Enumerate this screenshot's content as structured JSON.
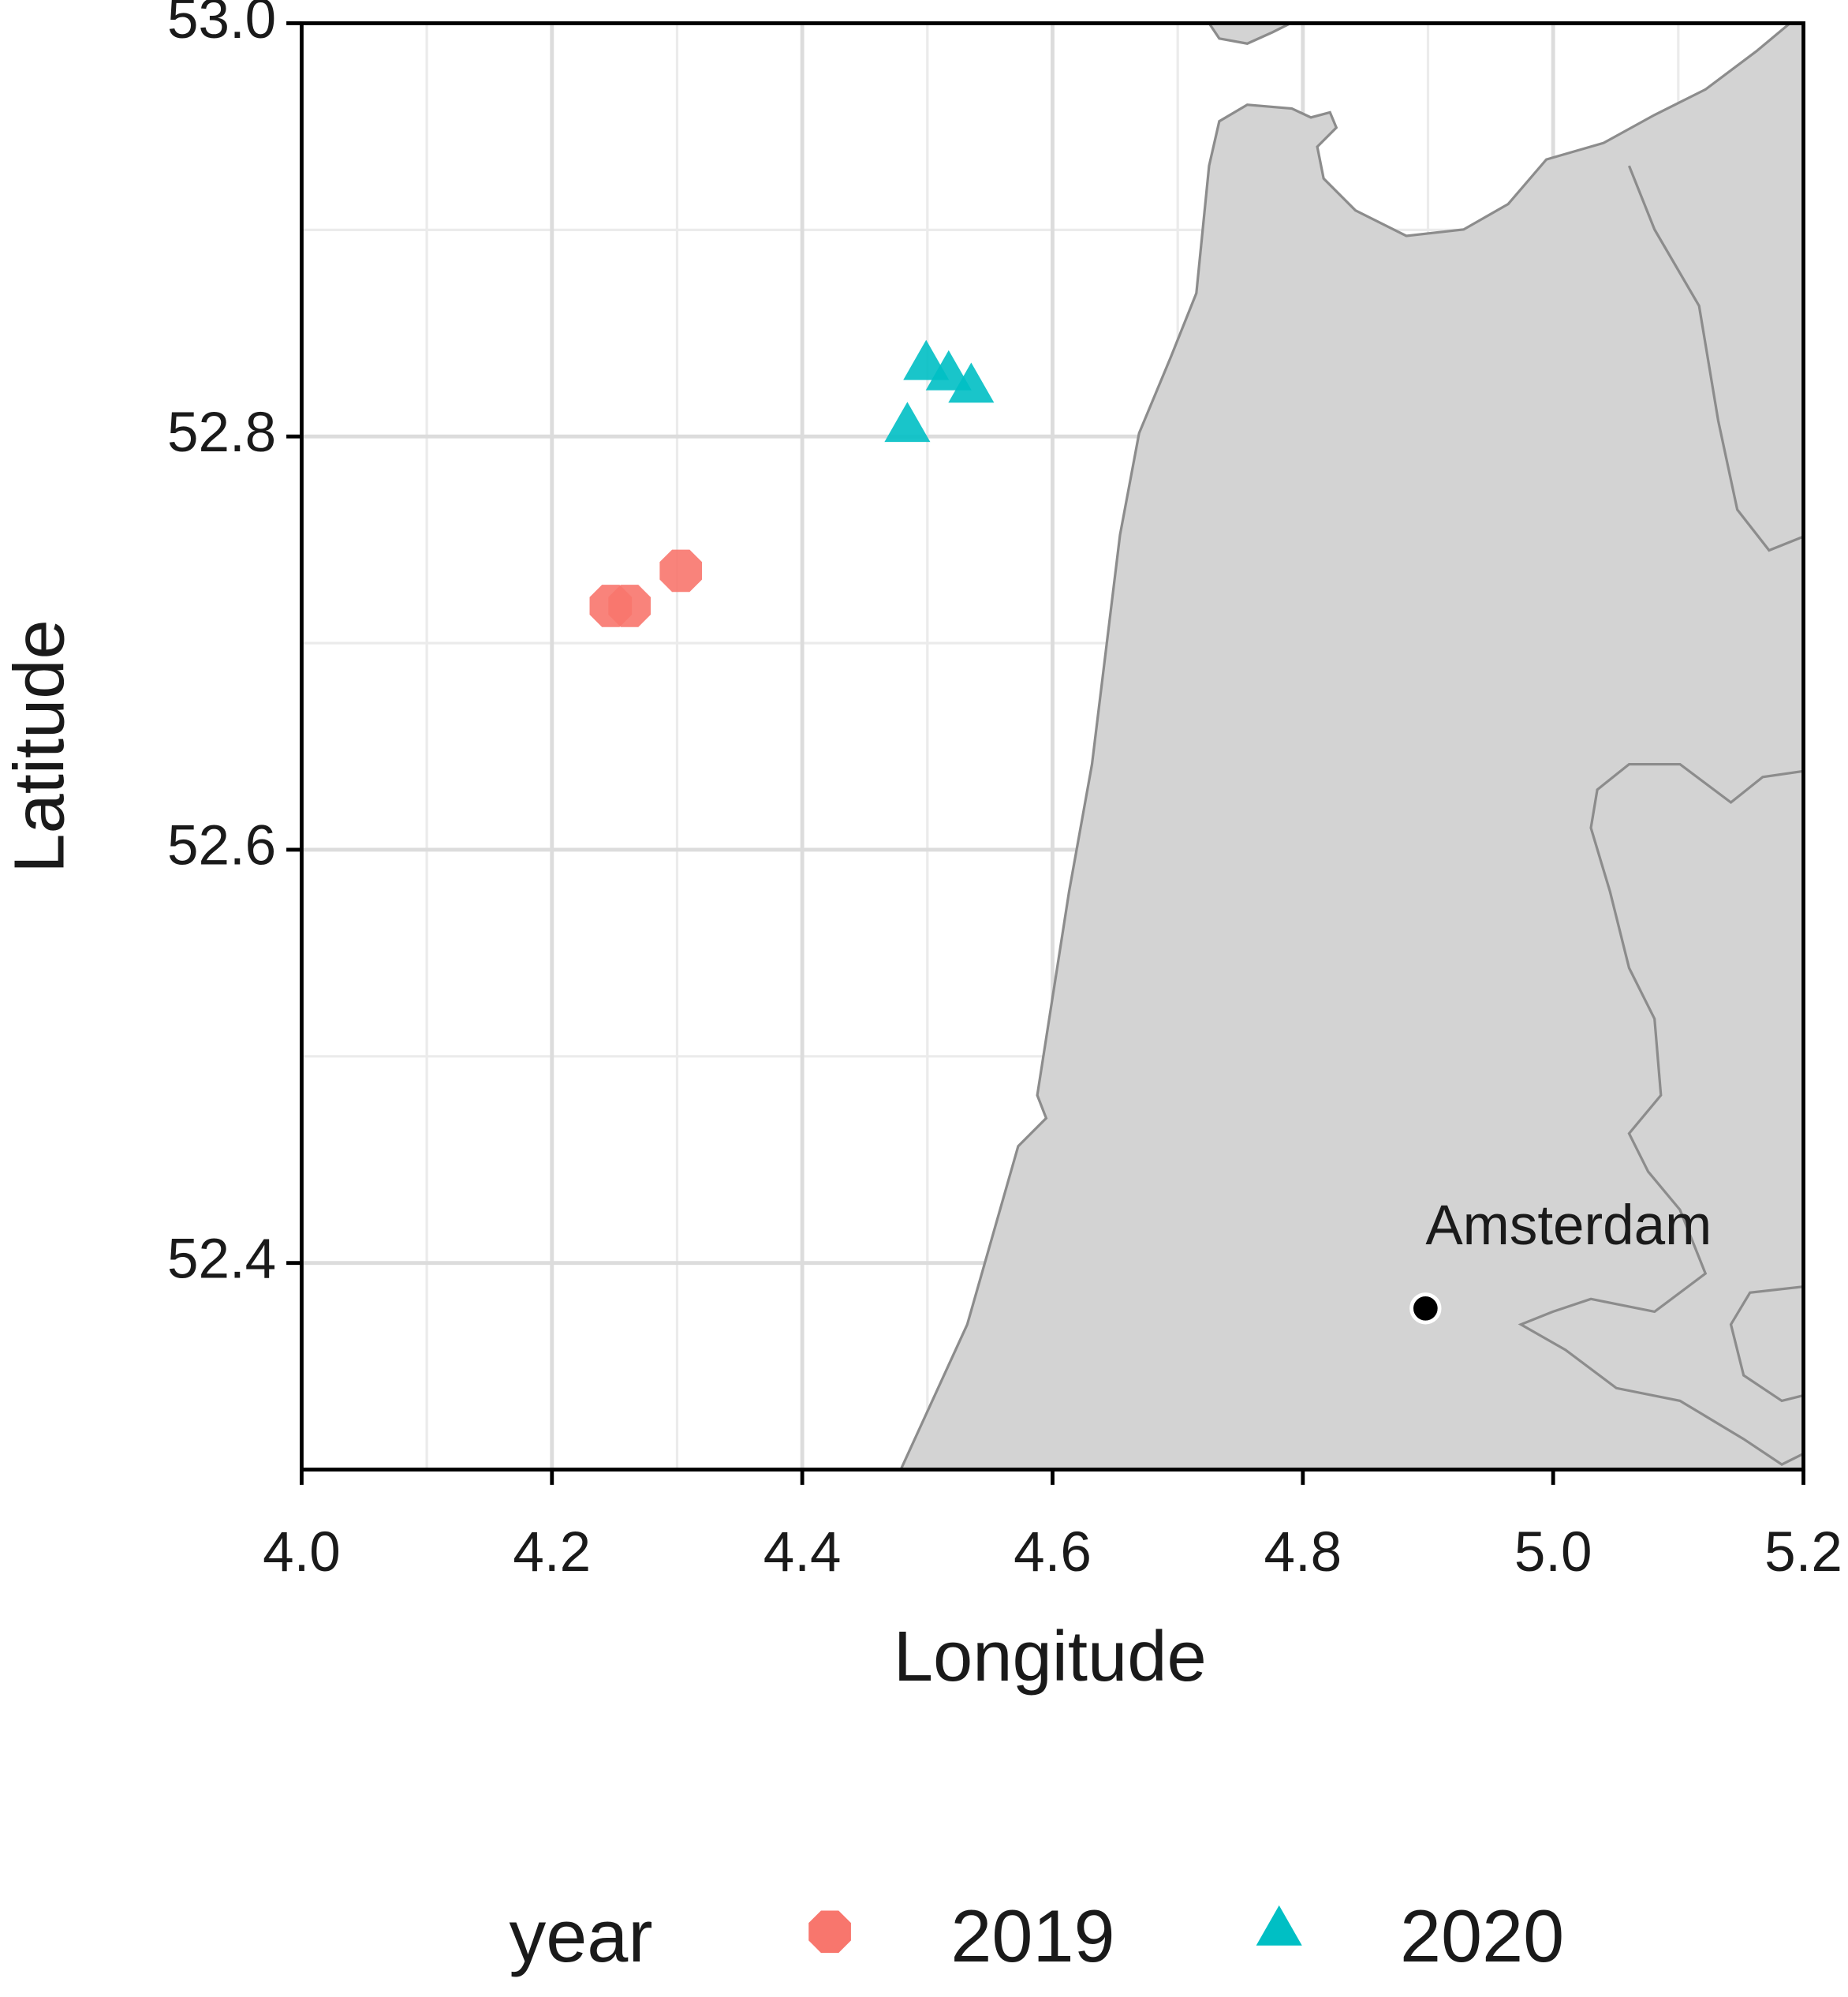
{
  "chart_data": {
    "type": "scatter",
    "x_label": "Longitude",
    "y_label": "Latitude",
    "xlim": [
      4.0,
      5.2
    ],
    "ylim": [
      52.3,
      53.0
    ],
    "xticks": [
      {
        "value": 4.0,
        "label": "4.0"
      },
      4.2,
      4.4,
      4.6,
      4.8,
      {
        "value": 5.0,
        "label": "5.0"
      },
      5.2
    ],
    "yticks": [
      52.4,
      52.6,
      52.8,
      {
        "value": 53.0,
        "label": "53.0"
      }
    ],
    "grid": true,
    "legend_title": "year",
    "legend_position": "bottom",
    "series": [
      {
        "name": "2019",
        "color": "#F8766D",
        "marker": "octagon",
        "x": [
          4.247,
          4.262,
          4.303
        ],
        "y": [
          52.718,
          52.718,
          52.735
        ]
      },
      {
        "name": "2020",
        "color": "#00BFC4",
        "marker": "triangle",
        "x": [
          4.499,
          4.517,
          4.535,
          4.484
        ],
        "y": [
          52.834,
          52.829,
          52.823,
          52.804
        ]
      }
    ],
    "annotations": [
      {
        "text": "Amsterdam",
        "x": 4.898,
        "y": 52.378,
        "color": "#000000"
      }
    ]
  }
}
